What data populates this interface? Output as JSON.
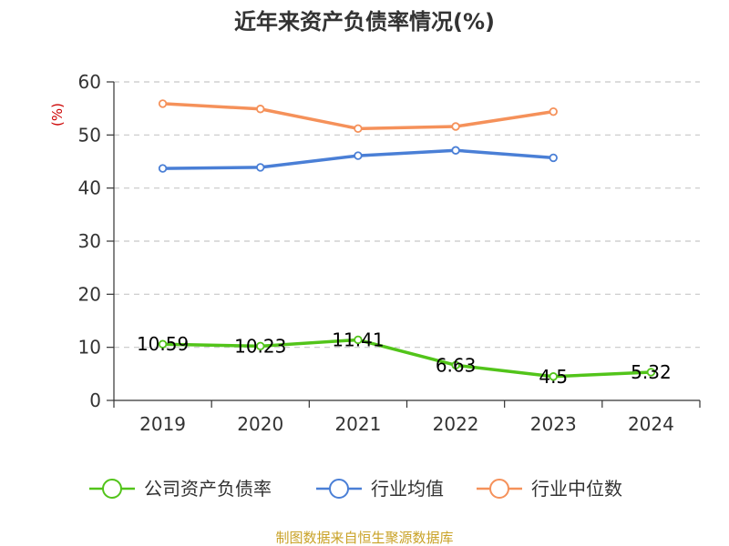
{
  "chart_data": {
    "type": "line",
    "title": "近年来资产负债率情况(%)",
    "ylabel": "(%)",
    "xlabel": "",
    "categories": [
      "2019",
      "2020",
      "2021",
      "2022",
      "2023",
      "2024"
    ],
    "ylim": [
      0,
      60
    ],
    "yticks": [
      0,
      10,
      20,
      30,
      40,
      50,
      60
    ],
    "grid": true,
    "legend_position": "bottom",
    "series": [
      {
        "name": "公司资产负债率",
        "color": "#52c41a",
        "values": [
          10.59,
          10.23,
          11.41,
          6.63,
          4.5,
          5.32
        ],
        "labels": [
          "10.59",
          "10.23",
          "11.41",
          "6.63",
          "4.5",
          "5.32"
        ]
      },
      {
        "name": "行业均值",
        "color": "#4a7fd6",
        "values": [
          43.7,
          43.9,
          46.1,
          47.1,
          45.7,
          null
        ]
      },
      {
        "name": "行业中位数",
        "color": "#f5915a",
        "values": [
          55.9,
          54.9,
          51.2,
          51.6,
          54.4,
          null
        ]
      }
    ]
  },
  "source_note": "制图数据来自恒生聚源数据库"
}
